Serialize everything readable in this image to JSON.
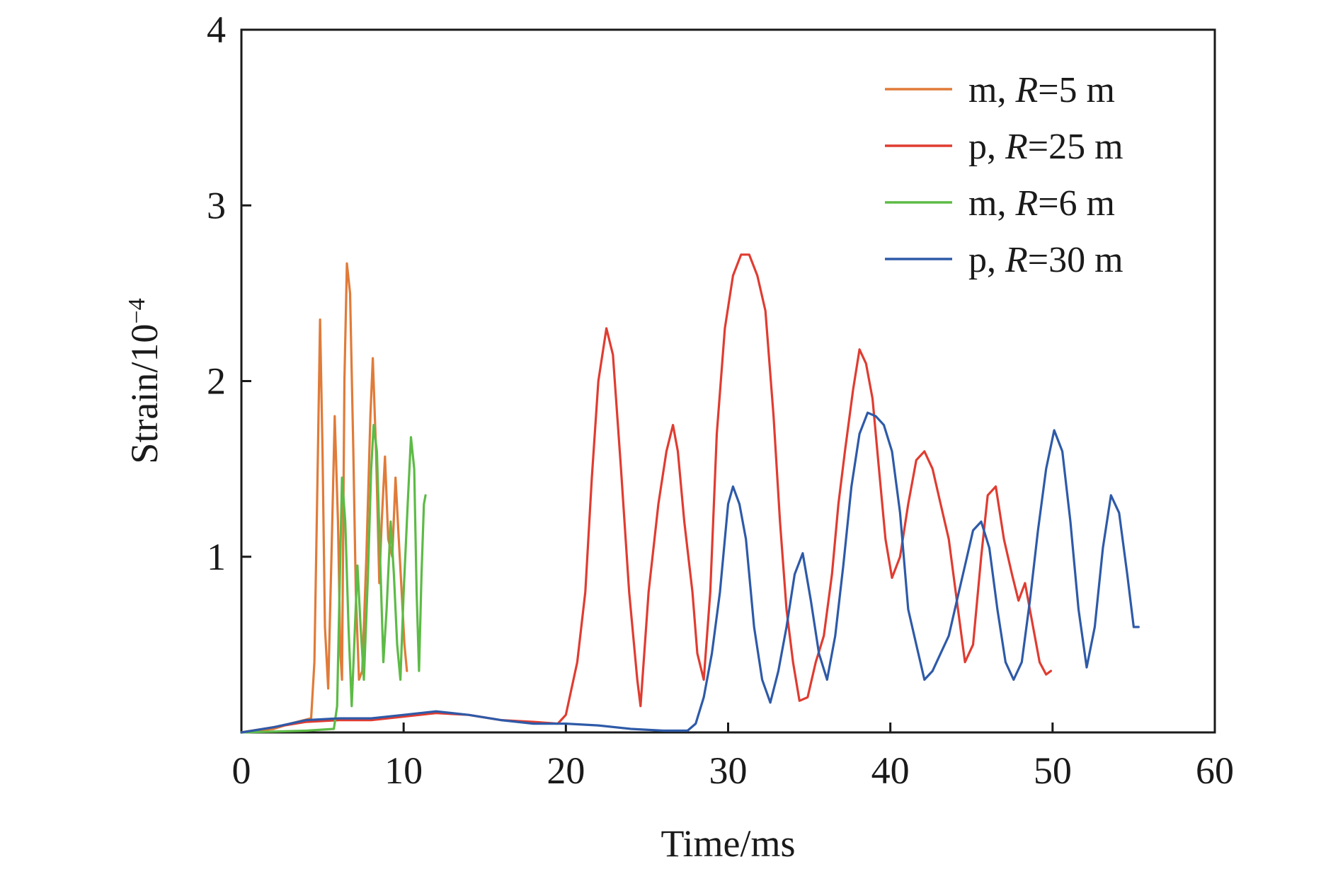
{
  "chart_data": {
    "type": "line",
    "title": "",
    "xlabel": "Time/ms",
    "ylabel": "Strain/10",
    "ylabel_exponent": "−4",
    "xlim": [
      0,
      60
    ],
    "ylim": [
      0,
      4
    ],
    "xticks": [
      0,
      10,
      20,
      30,
      40,
      50,
      60
    ],
    "yticks": [
      1,
      2,
      3,
      4
    ],
    "grid": false,
    "legend_position": "top-right",
    "series": [
      {
        "name": "m, R=5 m",
        "name_prefix": "m, ",
        "name_var": "R",
        "name_suffix": "=5 m",
        "color": "#E07B39",
        "points": [
          [
            0,
            0.0
          ],
          [
            1,
            0.01
          ],
          [
            2,
            0.02
          ],
          [
            3,
            0.05
          ],
          [
            4.3,
            0.08
          ],
          [
            4.5,
            0.4
          ],
          [
            4.7,
            1.5
          ],
          [
            4.85,
            2.35
          ],
          [
            5.0,
            1.6
          ],
          [
            5.15,
            0.6
          ],
          [
            5.35,
            0.25
          ],
          [
            5.55,
            1.0
          ],
          [
            5.75,
            1.8
          ],
          [
            5.95,
            1.2
          ],
          [
            6.1,
            0.45
          ],
          [
            6.2,
            0.3
          ],
          [
            6.35,
            2.0
          ],
          [
            6.5,
            2.67
          ],
          [
            6.7,
            2.5
          ],
          [
            6.9,
            1.6
          ],
          [
            7.05,
            0.8
          ],
          [
            7.25,
            0.3
          ],
          [
            7.45,
            0.35
          ],
          [
            7.7,
            1.0
          ],
          [
            7.95,
            1.8
          ],
          [
            8.1,
            2.13
          ],
          [
            8.3,
            1.6
          ],
          [
            8.5,
            0.85
          ],
          [
            8.65,
            1.2
          ],
          [
            8.85,
            1.57
          ],
          [
            9.05,
            1.1
          ],
          [
            9.3,
            1.0
          ],
          [
            9.5,
            1.45
          ],
          [
            9.7,
            1.1
          ],
          [
            9.85,
            0.85
          ],
          [
            10.05,
            0.5
          ],
          [
            10.2,
            0.35
          ]
        ]
      },
      {
        "name": "p, R=25 m",
        "name_prefix": "p, ",
        "name_var": "R",
        "name_suffix": "=25 m",
        "color": "#E03C31",
        "points": [
          [
            0,
            0.0
          ],
          [
            2,
            0.03
          ],
          [
            4,
            0.06
          ],
          [
            6,
            0.07
          ],
          [
            8,
            0.07
          ],
          [
            10,
            0.09
          ],
          [
            12,
            0.11
          ],
          [
            14,
            0.1
          ],
          [
            16,
            0.07
          ],
          [
            18,
            0.06
          ],
          [
            19.5,
            0.05
          ],
          [
            20,
            0.1
          ],
          [
            20.7,
            0.4
          ],
          [
            21.2,
            0.8
          ],
          [
            21.6,
            1.45
          ],
          [
            22.0,
            2.0
          ],
          [
            22.5,
            2.3
          ],
          [
            22.9,
            2.15
          ],
          [
            23.4,
            1.5
          ],
          [
            23.9,
            0.8
          ],
          [
            24.4,
            0.3
          ],
          [
            24.6,
            0.15
          ],
          [
            25.1,
            0.8
          ],
          [
            25.7,
            1.3
          ],
          [
            26.2,
            1.6
          ],
          [
            26.6,
            1.75
          ],
          [
            26.9,
            1.6
          ],
          [
            27.3,
            1.2
          ],
          [
            27.8,
            0.8
          ],
          [
            28.1,
            0.45
          ],
          [
            28.5,
            0.3
          ],
          [
            28.9,
            0.8
          ],
          [
            29.3,
            1.7
          ],
          [
            29.8,
            2.3
          ],
          [
            30.3,
            2.6
          ],
          [
            30.8,
            2.72
          ],
          [
            31.3,
            2.72
          ],
          [
            31.8,
            2.6
          ],
          [
            32.3,
            2.4
          ],
          [
            32.8,
            1.8
          ],
          [
            33.2,
            1.2
          ],
          [
            33.6,
            0.7
          ],
          [
            34.0,
            0.4
          ],
          [
            34.4,
            0.18
          ],
          [
            34.9,
            0.2
          ],
          [
            35.4,
            0.4
          ],
          [
            35.9,
            0.55
          ],
          [
            36.4,
            0.9
          ],
          [
            36.8,
            1.3
          ],
          [
            37.2,
            1.6
          ],
          [
            37.7,
            1.95
          ],
          [
            38.1,
            2.18
          ],
          [
            38.5,
            2.1
          ],
          [
            38.9,
            1.9
          ],
          [
            39.3,
            1.5
          ],
          [
            39.7,
            1.1
          ],
          [
            40.1,
            0.88
          ],
          [
            40.6,
            1.0
          ],
          [
            41.1,
            1.3
          ],
          [
            41.6,
            1.55
          ],
          [
            42.1,
            1.6
          ],
          [
            42.6,
            1.5
          ],
          [
            43.1,
            1.3
          ],
          [
            43.6,
            1.1
          ],
          [
            44.1,
            0.75
          ],
          [
            44.6,
            0.4
          ],
          [
            45.1,
            0.5
          ],
          [
            45.6,
            1.0
          ],
          [
            46.0,
            1.35
          ],
          [
            46.5,
            1.4
          ],
          [
            47.0,
            1.1
          ],
          [
            47.5,
            0.9
          ],
          [
            47.9,
            0.75
          ],
          [
            48.3,
            0.85
          ],
          [
            48.8,
            0.6
          ],
          [
            49.2,
            0.4
          ],
          [
            49.6,
            0.33
          ],
          [
            49.9,
            0.35
          ]
        ]
      },
      {
        "name": "m, R=6 m",
        "name_prefix": "m, ",
        "name_var": "R",
        "name_suffix": "=6 m",
        "color": "#5DBB46",
        "points": [
          [
            0,
            0.0
          ],
          [
            2,
            0.005
          ],
          [
            4,
            0.01
          ],
          [
            5.7,
            0.02
          ],
          [
            5.9,
            0.15
          ],
          [
            6.05,
            0.8
          ],
          [
            6.2,
            1.45
          ],
          [
            6.4,
            1.2
          ],
          [
            6.6,
            0.6
          ],
          [
            6.8,
            0.15
          ],
          [
            7.0,
            0.6
          ],
          [
            7.15,
            0.95
          ],
          [
            7.35,
            0.6
          ],
          [
            7.55,
            0.3
          ],
          [
            7.8,
            0.9
          ],
          [
            8.0,
            1.5
          ],
          [
            8.15,
            1.75
          ],
          [
            8.35,
            1.6
          ],
          [
            8.55,
            1.0
          ],
          [
            8.75,
            0.4
          ],
          [
            8.95,
            0.7
          ],
          [
            9.2,
            1.2
          ],
          [
            9.4,
            0.9
          ],
          [
            9.6,
            0.5
          ],
          [
            9.8,
            0.3
          ],
          [
            10.0,
            0.8
          ],
          [
            10.25,
            1.3
          ],
          [
            10.45,
            1.68
          ],
          [
            10.65,
            1.5
          ],
          [
            10.8,
            0.8
          ],
          [
            10.95,
            0.35
          ],
          [
            11.1,
            0.9
          ],
          [
            11.25,
            1.3
          ],
          [
            11.35,
            1.35
          ]
        ]
      },
      {
        "name": "p, R=30 m",
        "name_prefix": "p, ",
        "name_var": "R",
        "name_suffix": "=30 m",
        "color": "#2E5AA8",
        "points": [
          [
            0,
            0.0
          ],
          [
            2,
            0.03
          ],
          [
            4,
            0.07
          ],
          [
            6,
            0.08
          ],
          [
            8,
            0.08
          ],
          [
            10,
            0.1
          ],
          [
            12,
            0.12
          ],
          [
            14,
            0.1
          ],
          [
            16,
            0.07
          ],
          [
            18,
            0.05
          ],
          [
            20,
            0.05
          ],
          [
            22,
            0.04
          ],
          [
            24,
            0.02
          ],
          [
            26,
            0.01
          ],
          [
            27.5,
            0.01
          ],
          [
            28.0,
            0.05
          ],
          [
            28.5,
            0.2
          ],
          [
            29.0,
            0.45
          ],
          [
            29.5,
            0.8
          ],
          [
            30.0,
            1.3
          ],
          [
            30.3,
            1.4
          ],
          [
            30.7,
            1.3
          ],
          [
            31.1,
            1.1
          ],
          [
            31.6,
            0.6
          ],
          [
            32.1,
            0.3
          ],
          [
            32.6,
            0.17
          ],
          [
            33.1,
            0.35
          ],
          [
            33.6,
            0.6
          ],
          [
            34.1,
            0.9
          ],
          [
            34.6,
            1.02
          ],
          [
            35.1,
            0.75
          ],
          [
            35.6,
            0.45
          ],
          [
            36.1,
            0.3
          ],
          [
            36.6,
            0.55
          ],
          [
            37.1,
            0.95
          ],
          [
            37.6,
            1.4
          ],
          [
            38.1,
            1.7
          ],
          [
            38.6,
            1.82
          ],
          [
            39.1,
            1.8
          ],
          [
            39.6,
            1.75
          ],
          [
            40.1,
            1.6
          ],
          [
            40.6,
            1.25
          ],
          [
            41.1,
            0.7
          ],
          [
            41.6,
            0.5
          ],
          [
            42.1,
            0.3
          ],
          [
            42.6,
            0.35
          ],
          [
            43.1,
            0.45
          ],
          [
            43.6,
            0.55
          ],
          [
            44.1,
            0.75
          ],
          [
            44.6,
            0.95
          ],
          [
            45.1,
            1.15
          ],
          [
            45.6,
            1.2
          ],
          [
            46.1,
            1.05
          ],
          [
            46.6,
            0.7
          ],
          [
            47.1,
            0.4
          ],
          [
            47.6,
            0.3
          ],
          [
            48.1,
            0.4
          ],
          [
            48.6,
            0.75
          ],
          [
            49.1,
            1.15
          ],
          [
            49.6,
            1.5
          ],
          [
            50.1,
            1.72
          ],
          [
            50.6,
            1.6
          ],
          [
            51.1,
            1.2
          ],
          [
            51.6,
            0.7
          ],
          [
            52.1,
            0.37
          ],
          [
            52.6,
            0.6
          ],
          [
            53.1,
            1.05
          ],
          [
            53.6,
            1.35
          ],
          [
            54.1,
            1.25
          ],
          [
            54.6,
            0.9
          ],
          [
            55.0,
            0.6
          ],
          [
            55.3,
            0.6
          ]
        ]
      }
    ]
  }
}
